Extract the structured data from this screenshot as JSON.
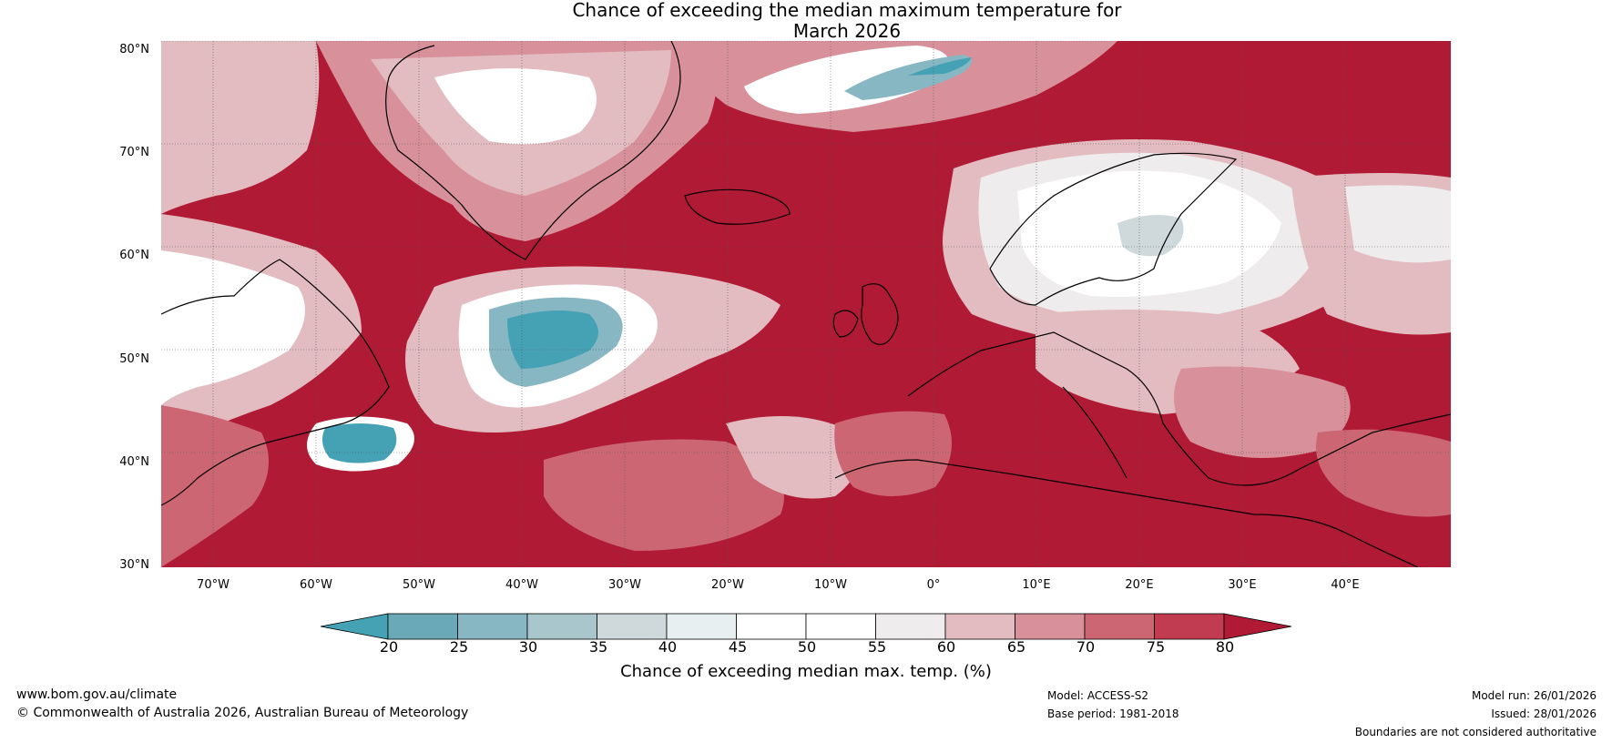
{
  "title": {
    "line1": "Chance of exceeding the median maximum temperature for",
    "line2": "March 2026"
  },
  "map": {
    "latitude_labels": [
      "80°N",
      "70°N",
      "60°N",
      "50°N",
      "40°N",
      "30°N"
    ],
    "longitude_labels": [
      "70°W",
      "60°W",
      "50°W",
      "40°W",
      "30°W",
      "20°W",
      "10°W",
      "0°",
      "10°E",
      "20°E",
      "30°E",
      "40°E"
    ],
    "colors": {
      "ocean_high": "#b01a35",
      "p75_80": "#c13c51",
      "p70_75": "#cc6673",
      "p65_70": "#d8919a",
      "p60_65": "#e3bcc1",
      "p55_60": "#eeecec",
      "p50_55": "#ffffff",
      "p45_50": "#ffffff",
      "p40_45": "#e8eff1",
      "p35_40": "#cfd9db",
      "p30_35": "#a9c6cc",
      "p25_30": "#88b7c4",
      "p20_25": "#6aa9b8",
      "below_20": "#45a2b4"
    }
  },
  "colorbar": {
    "ticks": [
      "20",
      "25",
      "30",
      "35",
      "40",
      "45",
      "50",
      "55",
      "60",
      "65",
      "70",
      "75",
      "80"
    ],
    "colors": [
      "#45a2b4",
      "#6aa9b8",
      "#88b7c4",
      "#a9c6cc",
      "#cfd9db",
      "#e8eff1",
      "#ffffff",
      "#ffffff",
      "#eeecec",
      "#e3bcc1",
      "#d8919a",
      "#cc6673",
      "#c13c51",
      "#b01a35"
    ],
    "label": "Chance of exceeding median max. temp. (%)"
  },
  "footer": {
    "website": "www.bom.gov.au/climate",
    "copyright": "© Commonwealth of Australia 2026, Australian Bureau of Meteorology",
    "model": "Model: ACCESS-S2",
    "base_period": "Base period: 1981-2018",
    "model_run": "Model run: 26/01/2026",
    "issued": "Issued: 28/01/2026",
    "disclaimer": "Boundaries are not considered authoritative"
  }
}
